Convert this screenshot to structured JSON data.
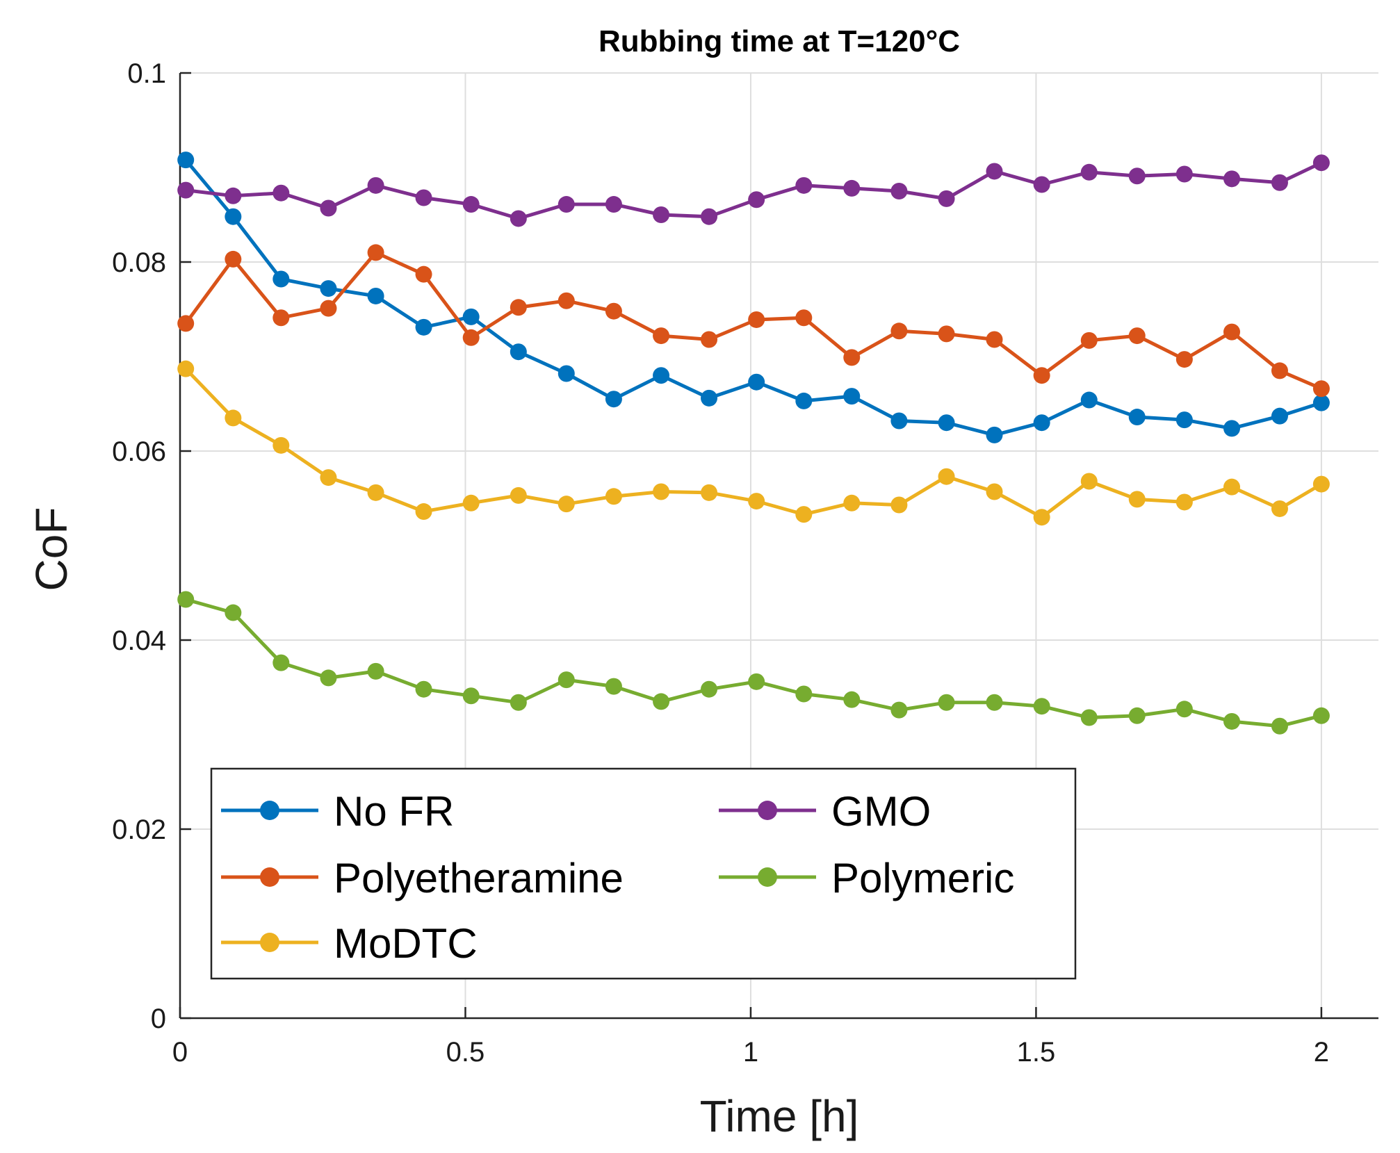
{
  "chart_data": {
    "type": "line",
    "title": "Rubbing time at T=120°C",
    "xlabel": "Time [h]",
    "ylabel": "CoF",
    "xlim": [
      0,
      2.1
    ],
    "ylim": [
      0,
      0.1
    ],
    "xticks": [
      0,
      0.5,
      1,
      1.5,
      2
    ],
    "xtick_labels": [
      "0",
      "0.5",
      "1",
      "1.5",
      "2"
    ],
    "yticks": [
      0,
      0.02,
      0.04,
      0.06,
      0.08,
      0.1
    ],
    "ytick_labels": [
      "0",
      "0.02",
      "0.04",
      "0.06",
      "0.08",
      "0.1"
    ],
    "grid": true,
    "legend_position": "bottom-left",
    "x": [
      0.01,
      0.093,
      0.177,
      0.26,
      0.343,
      0.427,
      0.51,
      0.593,
      0.677,
      0.76,
      0.843,
      0.927,
      1.01,
      1.093,
      1.177,
      1.26,
      1.343,
      1.427,
      1.51,
      1.593,
      1.677,
      1.76,
      1.843,
      1.927,
      2.0
    ],
    "series": [
      {
        "name": "No FR",
        "color": "#0072BD",
        "values": [
          0.0908,
          0.0848,
          0.0782,
          0.0772,
          0.0764,
          0.0731,
          0.0742,
          0.0705,
          0.0682,
          0.0655,
          0.068,
          0.0656,
          0.0673,
          0.0653,
          0.0658,
          0.0632,
          0.063,
          0.0617,
          0.063,
          0.0654,
          0.0636,
          0.0633,
          0.0624,
          0.0637,
          0.0651
        ]
      },
      {
        "name": "Polyetheramine",
        "color": "#D95319",
        "values": [
          0.0735,
          0.0803,
          0.0741,
          0.0751,
          0.081,
          0.0787,
          0.072,
          0.0752,
          0.0759,
          0.0748,
          0.0722,
          0.0718,
          0.0739,
          0.0741,
          0.0699,
          0.0727,
          0.0724,
          0.0718,
          0.068,
          0.0717,
          0.0722,
          0.0697,
          0.0726,
          0.0685,
          0.0666
        ]
      },
      {
        "name": "MoDTC",
        "color": "#EDB120",
        "values": [
          0.0687,
          0.0635,
          0.0606,
          0.0572,
          0.0556,
          0.0536,
          0.0545,
          0.0553,
          0.0544,
          0.0552,
          0.0557,
          0.0556,
          0.0547,
          0.0533,
          0.0545,
          0.0543,
          0.0573,
          0.0557,
          0.053,
          0.0568,
          0.0549,
          0.0546,
          0.0562,
          0.0539,
          0.0565
        ]
      },
      {
        "name": "GMO",
        "color": "#7E2F8E",
        "values": [
          0.0876,
          0.087,
          0.0873,
          0.0857,
          0.0881,
          0.0868,
          0.0861,
          0.0846,
          0.0861,
          0.0861,
          0.085,
          0.0848,
          0.0866,
          0.0881,
          0.0878,
          0.0875,
          0.0867,
          0.0896,
          0.0882,
          0.0895,
          0.0891,
          0.0893,
          0.0888,
          0.0884,
          0.0905
        ]
      },
      {
        "name": "Polymeric",
        "color": "#77AC30",
        "values": [
          0.0443,
          0.0429,
          0.0376,
          0.036,
          0.0367,
          0.0348,
          0.0341,
          0.0334,
          0.0358,
          0.0351,
          0.0335,
          0.0348,
          0.0356,
          0.0343,
          0.0337,
          0.0326,
          0.0334,
          0.0334,
          0.033,
          0.0318,
          0.032,
          0.0327,
          0.0314,
          0.0309,
          0.032
        ]
      }
    ]
  }
}
